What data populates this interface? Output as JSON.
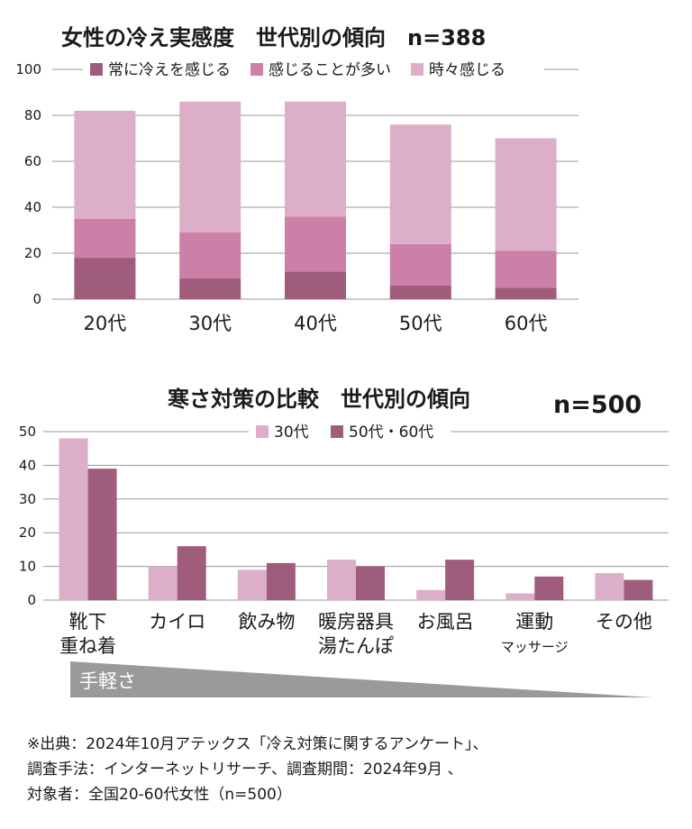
{
  "colors": {
    "always": "#a05c7b",
    "often": "#cc7fa7",
    "sometimes": "#ddaec7",
    "age30": "#ddaec7",
    "age5060": "#a05c7b",
    "ease_bar": "#9a9a9a",
    "grid": "#999999"
  },
  "chart_data": [
    {
      "type": "bar",
      "stacked": true,
      "title": "女性の冷え実感度　世代別の傾向　n=388",
      "categories": [
        "20代",
        "30代",
        "40代",
        "50代",
        "60代"
      ],
      "series": [
        {
          "name": "常に冷えを感じる",
          "color_key": "always",
          "values": [
            18,
            9,
            12,
            6,
            5
          ]
        },
        {
          "name": "感じることが多い",
          "color_key": "often",
          "values": [
            17,
            20,
            24,
            18,
            16
          ]
        },
        {
          "name": "時々感じる",
          "color_key": "sometimes",
          "values": [
            47,
            57,
            50,
            52,
            49
          ]
        }
      ],
      "ylim": [
        0,
        100
      ],
      "yticks": [
        0,
        20,
        40,
        60,
        80,
        100
      ],
      "grid": true,
      "legend_position": "top"
    },
    {
      "type": "bar",
      "stacked": false,
      "title": "寒さ対策の比較　世代別の傾向",
      "title_n": "n=500",
      "categories": [
        {
          "lines": [
            "靴下",
            "重ね着"
          ],
          "sub": ""
        },
        {
          "lines": [
            "カイロ"
          ],
          "sub": ""
        },
        {
          "lines": [
            "飲み物"
          ],
          "sub": ""
        },
        {
          "lines": [
            "暖房器具",
            "湯たんぽ"
          ],
          "sub": ""
        },
        {
          "lines": [
            "お風呂"
          ],
          "sub": ""
        },
        {
          "lines": [
            "運動"
          ],
          "sub": "マッサージ"
        },
        {
          "lines": [
            "その他"
          ],
          "sub": ""
        }
      ],
      "series": [
        {
          "name": "30代",
          "color_key": "age30",
          "values": [
            48,
            10,
            9,
            12,
            3,
            2,
            8
          ]
        },
        {
          "name": "50代・60代",
          "color_key": "age5060",
          "values": [
            39,
            16,
            11,
            10,
            12,
            7,
            6
          ]
        }
      ],
      "ylim": [
        0,
        50
      ],
      "yticks": [
        0,
        10,
        20,
        30,
        40,
        50
      ],
      "grid": true,
      "legend_position": "top",
      "ease_label": "手軽さ"
    }
  ],
  "source": [
    "※出典：2024年10月アテックス「冷え対策に関するアンケート」、",
    "調査手法：インターネットリサーチ、調査期間：2024年9月 、",
    "対象者：全国20-60代女性（n=500）"
  ]
}
